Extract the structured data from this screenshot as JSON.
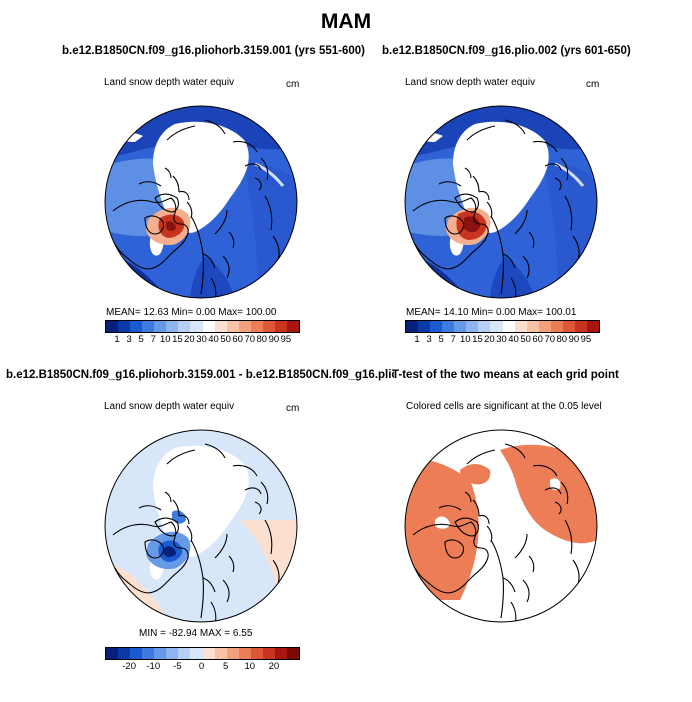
{
  "figure_title": "MAM",
  "panels": {
    "top_left": {
      "title": "b.e12.B1850CN.f09_g16.pliohorb.3159.001 (yrs 551-600)",
      "variable": "Land snow depth water equiv",
      "units": "cm",
      "stats": "MEAN=   12.63   Min=     0.00   Max=  100.00"
    },
    "top_right": {
      "title": "b.e12.B1850CN.f09_g16.plio.002 (yrs 601-650)",
      "variable": "Land snow depth water equiv",
      "units": "cm",
      "stats": "MEAN=   14.10   Min=     0.00   Max=  100.01"
    },
    "bottom_left": {
      "title": "b.e12.B1850CN.f09_g16.pliohorb.3159.001 - b.e12.B1850CN.f09_g16.plio.002",
      "variable": "Land snow depth water equiv",
      "units": "cm",
      "stats": "MIN = -82.94  MAX =     6.55"
    },
    "bottom_right": {
      "title": "T-test of the two means at each grid point",
      "subtitle": "Colored cells are significant at the 0.05 level"
    }
  },
  "colorbars": {
    "absolute": {
      "labels": [
        "1",
        "3",
        "5",
        "7",
        "10",
        "15",
        "20",
        "30",
        "40",
        "50",
        "60",
        "70",
        "80",
        "90",
        "95"
      ],
      "colors": [
        "#08207a",
        "#0a3aa8",
        "#1a5bd0",
        "#3d7be0",
        "#6699e6",
        "#8fb5ee",
        "#b6cff5",
        "#d8e6fa",
        "#ffffff",
        "#fbe0d0",
        "#f8c2a6",
        "#f4a07d",
        "#ec7d57",
        "#de5736",
        "#c83420",
        "#a81410"
      ]
    },
    "difference": {
      "labels": [
        "-20",
        "-10",
        "-5",
        "0",
        "5",
        "10",
        "20"
      ],
      "colors": [
        "#08207a",
        "#0a3aa8",
        "#1a5bd0",
        "#3d7be0",
        "#6699e6",
        "#8fb5ee",
        "#b6cff5",
        "#d8e6fa",
        "#fbe0d0",
        "#f8c2a6",
        "#f4a07d",
        "#ec7d57",
        "#de5736",
        "#c83420",
        "#a81410",
        "#7a0a08"
      ],
      "tick_after_box": [
        2,
        4,
        6,
        8,
        10,
        12,
        14
      ]
    }
  },
  "chart_data": {
    "type": "heatmap",
    "season": "MAM",
    "projection": "north polar stereographic",
    "panels": [
      {
        "name": "pliohorb.3159.001 (yrs 551-600)",
        "variable": "Land snow depth water equiv",
        "units": "cm",
        "mean": 12.63,
        "min": 0.0,
        "max": 100.0
      },
      {
        "name": "plio.002 (yrs 601-650)",
        "variable": "Land snow depth water equiv",
        "units": "cm",
        "mean": 14.1,
        "min": 0.0,
        "max": 100.01
      },
      {
        "name": "difference",
        "variable": "Land snow depth water equiv",
        "units": "cm",
        "min": -82.94,
        "max": 6.55
      },
      {
        "name": "t-test",
        "description": "Colored cells are significant at the 0.05 level",
        "significance": 0.05
      }
    ],
    "contour_levels_absolute": [
      1,
      3,
      5,
      7,
      10,
      15,
      20,
      30,
      40,
      50,
      60,
      70,
      80,
      90,
      95
    ],
    "contour_levels_difference": [
      -20,
      -10,
      -5,
      0,
      5,
      10,
      20
    ]
  }
}
